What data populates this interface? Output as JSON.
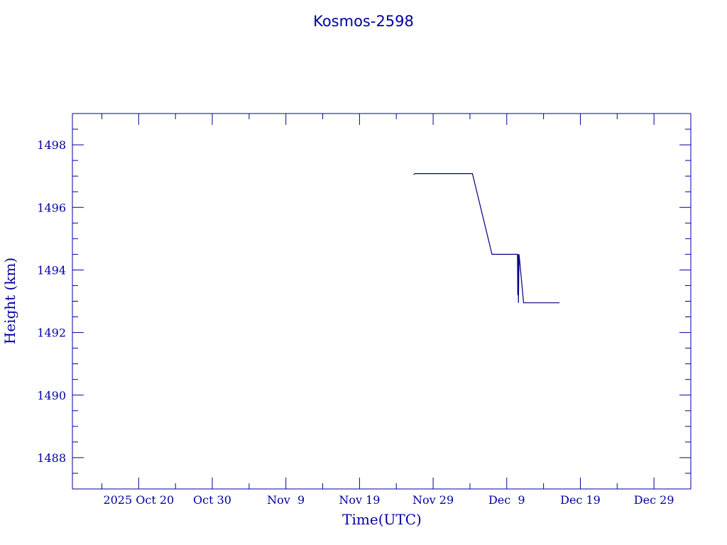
{
  "chart_data": {
    "type": "line",
    "title": "Kosmos-2598",
    "xlabel": "Time(UTC)",
    "ylabel": "Height (km)",
    "x_range": [
      "2025-10-11",
      "2026-01-03"
    ],
    "ylim": [
      1487,
      1499
    ],
    "grid": false,
    "legend": "none",
    "x_ticks": [
      {
        "date": "2025-10-20",
        "label": "2025 Oct 20"
      },
      {
        "date": "2025-10-30",
        "label": "Oct 30"
      },
      {
        "date": "2025-11-09",
        "label": "Nov  9"
      },
      {
        "date": "2025-11-19",
        "label": "Nov 19"
      },
      {
        "date": "2025-11-29",
        "label": "Nov 29"
      },
      {
        "date": "2025-12-09",
        "label": "Dec  9"
      },
      {
        "date": "2025-12-19",
        "label": "Dec 19"
      },
      {
        "date": "2025-12-29",
        "label": "Dec 29"
      }
    ],
    "y_ticks": [
      1488,
      1490,
      1492,
      1494,
      1496,
      1498
    ],
    "series": [
      {
        "x": [
          "2025-11-26 08:00",
          "2025-11-26 14:00",
          "2025-12-04 08:00",
          "2025-12-07 00:00",
          "2025-12-10 11:00",
          "2025-12-10 11:50",
          "2025-12-10 13:00",
          "2025-12-10 14:00",
          "2025-12-10 16:00",
          "2025-12-11 07:00",
          "2025-12-16 04:00"
        ],
        "y": [
          1497.05,
          1497.08,
          1497.08,
          1494.5,
          1494.5,
          1493.2,
          1494.5,
          1492.95,
          1494.5,
          1492.95,
          1492.95
        ]
      }
    ]
  },
  "colors": {
    "axis": "#00009c",
    "line": "#000080",
    "text": "#00009c",
    "background": "#ffffff"
  }
}
